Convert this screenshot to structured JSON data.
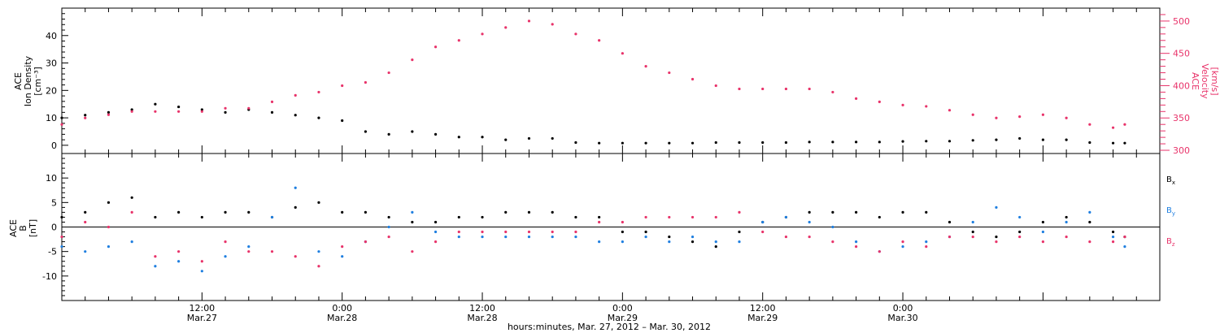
{
  "chart_data": [
    {
      "type": "scatter",
      "title": "",
      "ylabel_left": [
        "ACE",
        "Ion Density",
        "[cm⁻³]"
      ],
      "ylabel_right": [
        "ACE",
        "Velocity",
        "[km/s]"
      ],
      "ylim_left": [
        -3,
        50
      ],
      "ylim_right": [
        295,
        520
      ],
      "yticks_left": [
        0,
        10,
        20,
        30,
        40
      ],
      "yticks_right": [
        300,
        350,
        400,
        450,
        500
      ],
      "xlim_hours": [
        0,
        94
      ],
      "x_unit": "hours since Mar.27 00:00 (UTC), 2012",
      "colors": {
        "density": "#000000",
        "velocity": "#e8336a"
      },
      "series": [
        {
          "label_ref": "density",
          "axis": "left",
          "x": [
            0,
            2,
            4,
            6,
            8,
            10,
            12,
            14,
            16,
            18,
            20,
            22,
            24,
            26,
            28,
            30,
            32,
            34,
            36,
            38,
            40,
            42,
            44,
            46,
            48,
            50,
            52,
            54,
            56,
            58,
            60,
            62,
            64,
            66,
            68,
            70,
            72,
            74,
            76,
            78,
            80,
            82,
            84,
            86,
            88,
            90,
            91
          ],
          "y": [
            10,
            11,
            12,
            13,
            15,
            14,
            13,
            12,
            13,
            12,
            11,
            10,
            9,
            5,
            4,
            5,
            4,
            3,
            3,
            2,
            2.5,
            2.5,
            1,
            0.8,
            0.8,
            0.8,
            0.8,
            0.8,
            1,
            1,
            1,
            1,
            1.2,
            1.2,
            1.2,
            1.2,
            1.4,
            1.5,
            1.5,
            1.8,
            2,
            2.5,
            2,
            2,
            1,
            0.8,
            0.8
          ]
        },
        {
          "label_ref": "velocity",
          "axis": "right",
          "x": [
            0,
            2,
            4,
            6,
            8,
            10,
            12,
            14,
            16,
            18,
            20,
            22,
            24,
            26,
            28,
            30,
            32,
            34,
            36,
            38,
            40,
            42,
            44,
            46,
            48,
            50,
            52,
            54,
            56,
            58,
            60,
            62,
            64,
            66,
            68,
            70,
            72,
            74,
            76,
            78,
            80,
            82,
            84,
            86,
            88,
            90,
            91
          ],
          "y": [
            340,
            350,
            355,
            360,
            360,
            360,
            360,
            365,
            365,
            375,
            385,
            390,
            400,
            405,
            420,
            440,
            460,
            470,
            480,
            490,
            500,
            495,
            480,
            470,
            450,
            430,
            420,
            410,
            400,
            395,
            395,
            395,
            395,
            390,
            380,
            375,
            370,
            368,
            362,
            355,
            350,
            352,
            355,
            350,
            340,
            335,
            340
          ]
        }
      ]
    },
    {
      "type": "scatter",
      "title": "",
      "ylabel": [
        "ACE",
        "B",
        "[nT]"
      ],
      "ylim": [
        -15,
        15
      ],
      "yticks": [
        -10,
        -5,
        0,
        5,
        10
      ],
      "xlim_hours": [
        0,
        94
      ],
      "xticks": [
        {
          "hours": 12,
          "label": "12:00",
          "sublabel": "Mar.27"
        },
        {
          "hours": 24,
          "label": "0:00",
          "sublabel": "Mar.28"
        },
        {
          "hours": 36,
          "label": "12:00",
          "sublabel": "Mar.28"
        },
        {
          "hours": 48,
          "label": "0:00",
          "sublabel": "Mar.29"
        },
        {
          "hours": 60,
          "label": "12:00",
          "sublabel": "Mar.29"
        },
        {
          "hours": 72,
          "label": "0:00",
          "sublabel": "Mar.30"
        }
      ],
      "xlabel": "hours:minutes, Mar. 27, 2012 – Mar. 30, 2012",
      "legend_position": "right",
      "series": [
        {
          "name": "B",
          "subscript": "x",
          "color": "#000000",
          "x": [
            0,
            2,
            4,
            6,
            8,
            10,
            12,
            14,
            16,
            18,
            20,
            22,
            24,
            26,
            28,
            30,
            32,
            34,
            36,
            38,
            40,
            42,
            44,
            46,
            48,
            50,
            52,
            54,
            56,
            58,
            60,
            62,
            64,
            66,
            68,
            70,
            72,
            74,
            76,
            78,
            80,
            82,
            84,
            86,
            88,
            90,
            91
          ],
          "y": [
            2,
            3,
            5,
            6,
            2,
            3,
            2,
            3,
            3,
            2,
            4,
            5,
            3,
            3,
            2,
            1,
            1,
            2,
            2,
            3,
            3,
            3,
            2,
            2,
            -1,
            -1,
            -2,
            -3,
            -4,
            -1,
            1,
            2,
            3,
            3,
            3,
            2,
            3,
            3,
            1,
            -1,
            -2,
            -1,
            1,
            2,
            1,
            -1,
            -2
          ]
        },
        {
          "name": "B",
          "subscript": "y",
          "color": "#1f7fe0",
          "x": [
            0,
            2,
            4,
            6,
            8,
            10,
            12,
            14,
            16,
            18,
            20,
            22,
            24,
            26,
            28,
            30,
            32,
            34,
            36,
            38,
            40,
            42,
            44,
            46,
            48,
            50,
            52,
            54,
            56,
            58,
            60,
            62,
            64,
            66,
            68,
            70,
            72,
            74,
            76,
            78,
            80,
            82,
            84,
            86,
            88,
            90,
            91
          ],
          "y": [
            -4,
            -5,
            -4,
            -3,
            -8,
            -7,
            -9,
            -6,
            -4,
            2,
            8,
            -5,
            -6,
            -3,
            0,
            3,
            -1,
            -2,
            -2,
            -2,
            -2,
            -2,
            -2,
            -3,
            -3,
            -2,
            -3,
            -2,
            -3,
            -3,
            1,
            2,
            1,
            0,
            -3,
            -5,
            -4,
            -3,
            -2,
            1,
            4,
            2,
            -1,
            1,
            3,
            -2,
            -4
          ]
        },
        {
          "name": "B",
          "subscript": "z",
          "color": "#e8336a",
          "x": [
            0,
            2,
            4,
            6,
            8,
            10,
            12,
            14,
            16,
            18,
            20,
            22,
            24,
            26,
            28,
            30,
            32,
            34,
            36,
            38,
            40,
            42,
            44,
            46,
            48,
            50,
            52,
            54,
            56,
            58,
            60,
            62,
            64,
            66,
            68,
            70,
            72,
            74,
            76,
            78,
            80,
            82,
            84,
            86,
            88,
            90,
            91
          ],
          "y": [
            -2,
            1,
            0,
            3,
            -6,
            -5,
            -7,
            -3,
            -5,
            -5,
            -6,
            -8,
            -4,
            -3,
            -2,
            -5,
            -3,
            -1,
            -1,
            -1,
            -1,
            -1,
            -1,
            1,
            1,
            2,
            2,
            2,
            2,
            3,
            -1,
            -2,
            -2,
            -3,
            -4,
            -5,
            -3,
            -4,
            -2,
            -2,
            -3,
            -2,
            -3,
            -2,
            -3,
            -3,
            -2
          ]
        }
      ]
    }
  ]
}
